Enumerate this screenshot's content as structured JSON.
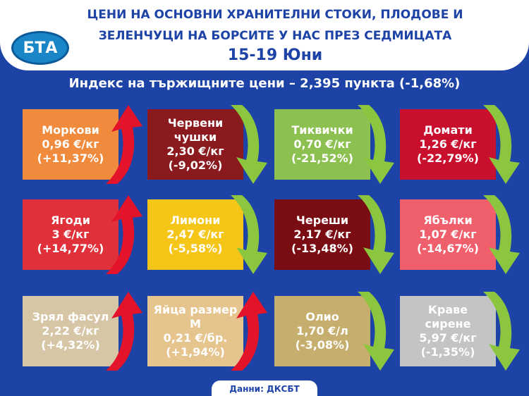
{
  "header": {
    "logo": "БТА",
    "title": "ЦЕНИ НА ОСНОВНИ ХРАНИТЕЛНИ СТОКИ, ПЛОДОВЕ И ЗЕЛЕНЧУЦИ НА БОРСИТЕ У НАС ПРЕЗ СЕДМИЦАТА",
    "date": "15-19 Юни"
  },
  "index": "Индекс на тържищните цени – 2,395 пункта (-1,68%)",
  "tiles": [
    {
      "name": "Моркови",
      "price": "0,96 €/кг",
      "change": "(+11,37%)",
      "color": "#f08a3c",
      "trend": "up"
    },
    {
      "name": "Червени чушки",
      "price": "2,30 €/кг",
      "change": "(-9,02%)",
      "color": "#8b1a1e",
      "trend": "down"
    },
    {
      "name": "Тиквички",
      "price": "0,70 €/кг",
      "change": "(-21,52%)",
      "color": "#8cc152",
      "trend": "down"
    },
    {
      "name": "Домати",
      "price": "1,26 €/кг",
      "change": "(-22,79%)",
      "color": "#c8102e",
      "trend": "down"
    },
    {
      "name": "Ягоди",
      "price": "3 €/кг",
      "change": "(+14,77%)",
      "color": "#e0303a",
      "trend": "up"
    },
    {
      "name": "Лимони",
      "price": "2,47 €/кг",
      "change": "(-5,58%)",
      "color": "#f5c518",
      "trend": "down"
    },
    {
      "name": "Череши",
      "price": "2,17 €/кг",
      "change": "(-13,48%)",
      "color": "#7a0d14",
      "trend": "down"
    },
    {
      "name": "Ябълки",
      "price": "1,07 €/кг",
      "change": "(-14,67%)",
      "color": "#f0606c",
      "trend": "down"
    },
    {
      "name": "Зрял фасул",
      "price": "2,22 €/кг",
      "change": "(+4,32%)",
      "color": "#d6c6a6",
      "trend": "up"
    },
    {
      "name": "Яйца размер М",
      "price": "0,21 €/бр.",
      "change": "(+1,94%)",
      "color": "#e6c48e",
      "trend": "up"
    },
    {
      "name": "Олио",
      "price": "1,70 €/л",
      "change": "(-3,08%)",
      "color": "#c6ae6e",
      "trend": "down"
    },
    {
      "name": "Краве сирене",
      "price": "5,97 €/кг",
      "change": "(-1,35%)",
      "color": "#c4c4c4",
      "trend": "down"
    }
  ],
  "footer": "Данни: ДКСБТ"
}
